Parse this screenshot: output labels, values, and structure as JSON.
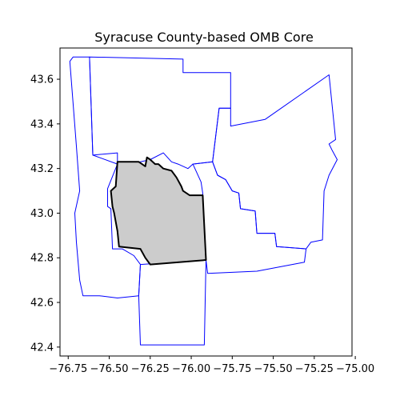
{
  "title": "Syracuse County-based OMB Core",
  "chart_data": {
    "type": "map",
    "title": "Syracuse County-based OMB Core",
    "xlim": [
      -76.8,
      -75.02
    ],
    "ylim": [
      42.36,
      43.74
    ],
    "x_ticks": [
      {
        "value": -76.75,
        "label": "−76.75"
      },
      {
        "value": -76.5,
        "label": "−76.50"
      },
      {
        "value": -76.25,
        "label": "−76.25"
      },
      {
        "value": -76.0,
        "label": "−76.00"
      },
      {
        "value": -75.75,
        "label": "−75.75"
      },
      {
        "value": -75.5,
        "label": "−75.50"
      },
      {
        "value": -75.25,
        "label": "−75.25"
      },
      {
        "value": -75.0,
        "label": "−75.00"
      }
    ],
    "y_ticks": [
      {
        "value": 42.4,
        "label": "42.4"
      },
      {
        "value": 42.6,
        "label": "42.6"
      },
      {
        "value": 42.8,
        "label": "42.8"
      },
      {
        "value": 43.0,
        "label": "43.0"
      },
      {
        "value": 43.2,
        "label": "43.2"
      },
      {
        "value": 43.4,
        "label": "43.4"
      },
      {
        "value": 43.6,
        "label": "43.6"
      }
    ],
    "colors": {
      "county_outline": "#0000ff",
      "core_outline": "#000000",
      "core_fill": "#cccccc"
    },
    "counties": [
      {
        "id": "north",
        "coords": [
          [
            -76.62,
            43.7
          ],
          [
            -76.05,
            43.69
          ],
          [
            -76.05,
            43.63
          ],
          [
            -75.76,
            43.63
          ],
          [
            -75.76,
            43.47
          ],
          [
            -75.83,
            43.47
          ],
          [
            -75.87,
            43.23
          ],
          [
            -75.99,
            43.22
          ],
          [
            -76.02,
            43.2
          ],
          [
            -76.08,
            43.22
          ],
          [
            -76.12,
            43.23
          ],
          [
            -76.17,
            43.27
          ],
          [
            -76.25,
            43.24
          ],
          [
            -76.31,
            43.23
          ],
          [
            -76.45,
            43.22
          ],
          [
            -76.45,
            43.27
          ],
          [
            -76.6,
            43.26
          ],
          [
            -76.62,
            43.7
          ]
        ]
      },
      {
        "id": "east",
        "coords": [
          [
            -75.83,
            43.47
          ],
          [
            -75.76,
            43.47
          ],
          [
            -75.76,
            43.39
          ],
          [
            -75.55,
            43.42
          ],
          [
            -75.16,
            43.62
          ],
          [
            -75.12,
            43.33
          ],
          [
            -75.16,
            43.31
          ],
          [
            -75.14,
            43.28
          ],
          [
            -75.11,
            43.24
          ],
          [
            -75.16,
            43.17
          ],
          [
            -75.19,
            43.1
          ],
          [
            -75.2,
            42.88
          ],
          [
            -75.27,
            42.87
          ],
          [
            -75.3,
            42.84
          ],
          [
            -75.48,
            42.85
          ],
          [
            -75.49,
            42.91
          ],
          [
            -75.6,
            42.91
          ],
          [
            -75.61,
            43.01
          ],
          [
            -75.7,
            43.02
          ],
          [
            -75.71,
            43.09
          ],
          [
            -75.75,
            43.1
          ],
          [
            -75.79,
            43.15
          ],
          [
            -75.84,
            43.17
          ],
          [
            -75.87,
            43.23
          ],
          [
            -75.83,
            43.47
          ]
        ]
      },
      {
        "id": "west",
        "coords": [
          [
            -76.62,
            43.7
          ],
          [
            -76.72,
            43.7
          ],
          [
            -76.74,
            43.68
          ],
          [
            -76.7,
            43.3
          ],
          [
            -76.68,
            43.1
          ],
          [
            -76.71,
            43.0
          ],
          [
            -76.7,
            42.87
          ],
          [
            -76.68,
            42.7
          ],
          [
            -76.66,
            42.63
          ],
          [
            -76.56,
            42.63
          ],
          [
            -76.45,
            42.62
          ],
          [
            -76.32,
            42.63
          ],
          [
            -76.31,
            42.77
          ],
          [
            -76.35,
            42.81
          ],
          [
            -76.42,
            42.84
          ],
          [
            -76.48,
            42.84
          ],
          [
            -76.49,
            43.02
          ],
          [
            -76.51,
            43.03
          ],
          [
            -76.51,
            43.11
          ],
          [
            -76.45,
            43.22
          ],
          [
            -76.6,
            43.26
          ],
          [
            -76.62,
            43.7
          ]
        ]
      },
      {
        "id": "south",
        "coords": [
          [
            -76.32,
            42.63
          ],
          [
            -76.31,
            42.41
          ],
          [
            -75.92,
            42.41
          ],
          [
            -75.91,
            42.79
          ],
          [
            -76.31,
            42.77
          ],
          [
            -76.32,
            42.63
          ]
        ]
      },
      {
        "id": "southeast",
        "coords": [
          [
            -75.91,
            42.79
          ],
          [
            -75.9,
            42.73
          ],
          [
            -75.6,
            42.74
          ],
          [
            -75.31,
            42.78
          ],
          [
            -75.3,
            42.84
          ],
          [
            -75.48,
            42.85
          ],
          [
            -75.49,
            42.91
          ],
          [
            -75.6,
            42.91
          ],
          [
            -75.61,
            43.01
          ],
          [
            -75.7,
            43.02
          ],
          [
            -75.71,
            43.09
          ],
          [
            -75.75,
            43.1
          ],
          [
            -75.79,
            43.15
          ],
          [
            -75.84,
            43.17
          ],
          [
            -75.87,
            43.23
          ],
          [
            -75.99,
            43.22
          ],
          [
            -75.94,
            43.14
          ],
          [
            -75.93,
            43.09
          ],
          [
            -75.91,
            42.79
          ]
        ]
      }
    ],
    "core": {
      "id": "onondaga",
      "coords": [
        [
          -76.45,
          43.23
        ],
        [
          -76.32,
          43.23
        ],
        [
          -76.3,
          43.22
        ],
        [
          -76.28,
          43.21
        ],
        [
          -76.27,
          43.25
        ],
        [
          -76.25,
          43.24
        ],
        [
          -76.22,
          43.22
        ],
        [
          -76.2,
          43.22
        ],
        [
          -76.17,
          43.2
        ],
        [
          -76.12,
          43.19
        ],
        [
          -76.09,
          43.16
        ],
        [
          -76.06,
          43.12
        ],
        [
          -76.05,
          43.1
        ],
        [
          -76.01,
          43.08
        ],
        [
          -75.93,
          43.08
        ],
        [
          -75.91,
          42.79
        ],
        [
          -76.25,
          42.77
        ],
        [
          -76.28,
          42.8
        ],
        [
          -76.31,
          42.84
        ],
        [
          -76.44,
          42.85
        ],
        [
          -76.45,
          42.92
        ],
        [
          -76.47,
          43.0
        ],
        [
          -76.48,
          43.03
        ],
        [
          -76.49,
          43.1
        ],
        [
          -76.46,
          43.12
        ],
        [
          -76.45,
          43.23
        ]
      ]
    }
  }
}
